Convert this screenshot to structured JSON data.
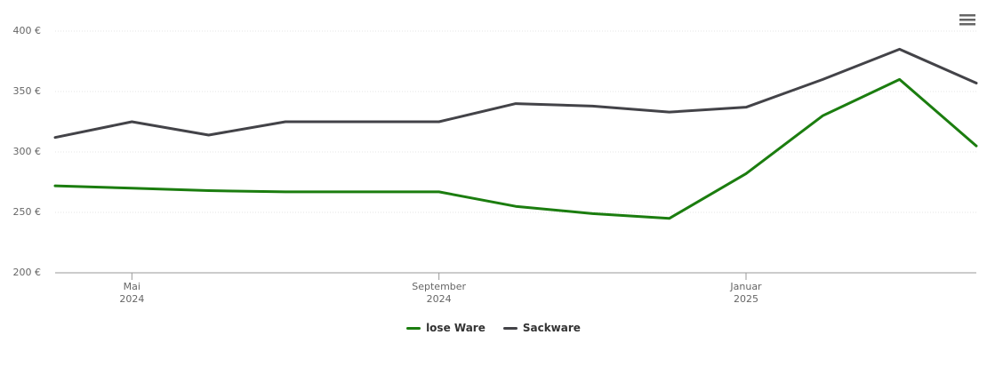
{
  "chart_data": {
    "type": "line",
    "x": [
      "2024-04",
      "2024-05",
      "2024-06",
      "2024-07",
      "2024-08",
      "2024-09",
      "2024-10",
      "2024-11",
      "2024-12",
      "2025-01",
      "2025-02",
      "2025-03",
      "2025-04"
    ],
    "series": [
      {
        "name": "lose Ware",
        "color": "#1b7d0f",
        "values": [
          272,
          270,
          268,
          267,
          267,
          267,
          255,
          249,
          245,
          282,
          330,
          360,
          305
        ]
      },
      {
        "name": "Sackware",
        "color": "#434348",
        "values": [
          312,
          325,
          314,
          325,
          325,
          325,
          340,
          338,
          333,
          337,
          360,
          385,
          357
        ]
      }
    ],
    "xlim": [
      "2024-04",
      "2025-04"
    ],
    "xticks": [
      {
        "value": "2024-05",
        "label": "Mai\n2024"
      },
      {
        "value": "2024-09",
        "label": "September\n2024"
      },
      {
        "value": "2025-01",
        "label": "Januar\n2025"
      }
    ],
    "ylim": [
      200,
      400
    ],
    "yticks": [
      {
        "value": 200,
        "label": "200 €"
      },
      {
        "value": 250,
        "label": "250 €"
      },
      {
        "value": 300,
        "label": "300 €"
      },
      {
        "value": 350,
        "label": "350 €"
      },
      {
        "value": 400,
        "label": "400 €"
      }
    ],
    "grid": true,
    "legend": "bottom"
  }
}
